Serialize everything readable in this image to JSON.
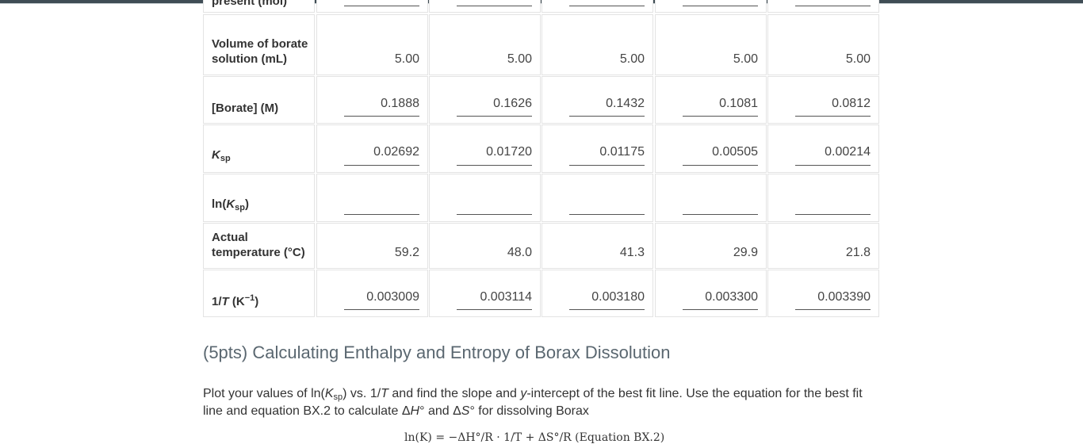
{
  "table": {
    "top_row": {
      "label": "present (mol)"
    },
    "rows": [
      {
        "id": "volume",
        "label": "Volume of borate solution (mL)",
        "values": [
          "5.00",
          "5.00",
          "5.00",
          "5.00",
          "5.00"
        ],
        "input": false
      },
      {
        "id": "borate",
        "label": "[Borate] (M)",
        "values": [
          "0.1888",
          "0.1626",
          "0.1432",
          "0.1081",
          "0.0812"
        ],
        "input": true
      },
      {
        "id": "ksp",
        "label": "K",
        "label_sub": "sp",
        "values": [
          "0.02692",
          "0.01720",
          "0.01175",
          "0.00505",
          "0.00214"
        ],
        "input": true
      },
      {
        "id": "lnksp",
        "label_pre": "ln(",
        "label": "K",
        "label_sub": "sp",
        "label_post": ")",
        "values": [
          "",
          "",
          "",
          "",
          ""
        ],
        "input": true
      },
      {
        "id": "temp",
        "label": "Actual temperature (°C)",
        "values": [
          "59.2",
          "48.0",
          "41.3",
          "29.9",
          "21.8"
        ],
        "input": false
      },
      {
        "id": "invT",
        "label_pre": "1/",
        "label": "T",
        "label_post": " (K",
        "label_sup": "−1",
        "label_end": ")",
        "values": [
          "0.003009",
          "0.003114",
          "0.003180",
          "0.003300",
          "0.003390"
        ],
        "input": true
      }
    ]
  },
  "section": {
    "title": "(5pts) Calculating Enthalpy and Entropy of Borax Dissolution",
    "para_1": "Plot your values of ln(",
    "para_k": "K",
    "para_sub": "sp",
    "para_2": ") vs. 1/",
    "para_t": "T",
    "para_3": " and find the slope and ",
    "para_y": "y",
    "para_4": "-intercept of the best fit line. Use the equation for the best fit line and equation BX.2 to calculate Δ",
    "para_h": "H",
    "para_5": "° and Δ",
    "para_s": "S",
    "para_6": "° for dissolving Borax",
    "equation_partial": "ln(K)  =  −ΔH°/R · 1/T  +  ΔS°/R     (Equation BX.2)"
  }
}
